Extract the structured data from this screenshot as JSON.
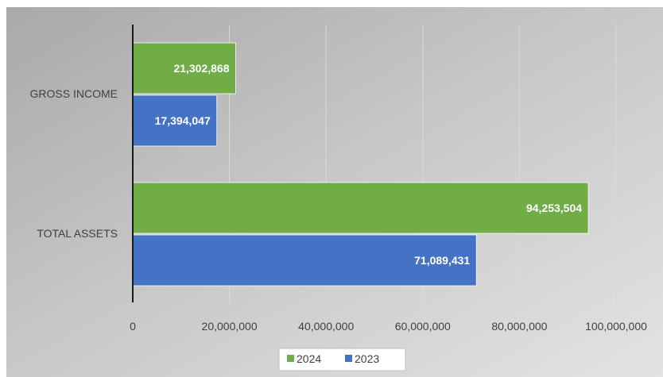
{
  "chart_data": {
    "type": "bar",
    "orientation": "horizontal",
    "categories": [
      "GROSS INCOME",
      "TOTAL ASSETS"
    ],
    "series": [
      {
        "name": "2024",
        "values": [
          21302868,
          94253504
        ],
        "color": "#70ad47",
        "labels": [
          "21,302,868",
          "94,253,504"
        ]
      },
      {
        "name": "2023",
        "values": [
          17394047,
          71089431
        ],
        "color": "#4472c4",
        "labels": [
          "17,394,047",
          "71,089,431"
        ]
      }
    ],
    "xlim": [
      0,
      100000000
    ],
    "ticks": [
      "0",
      "20,000,000",
      "40,000,000",
      "60,000,000",
      "80,000,000",
      "100,000,000"
    ],
    "tick_values": [
      0,
      20000000,
      40000000,
      60000000,
      80000000,
      100000000
    ],
    "grid": true,
    "legend": "bottom",
    "background": "gradient-gray"
  }
}
